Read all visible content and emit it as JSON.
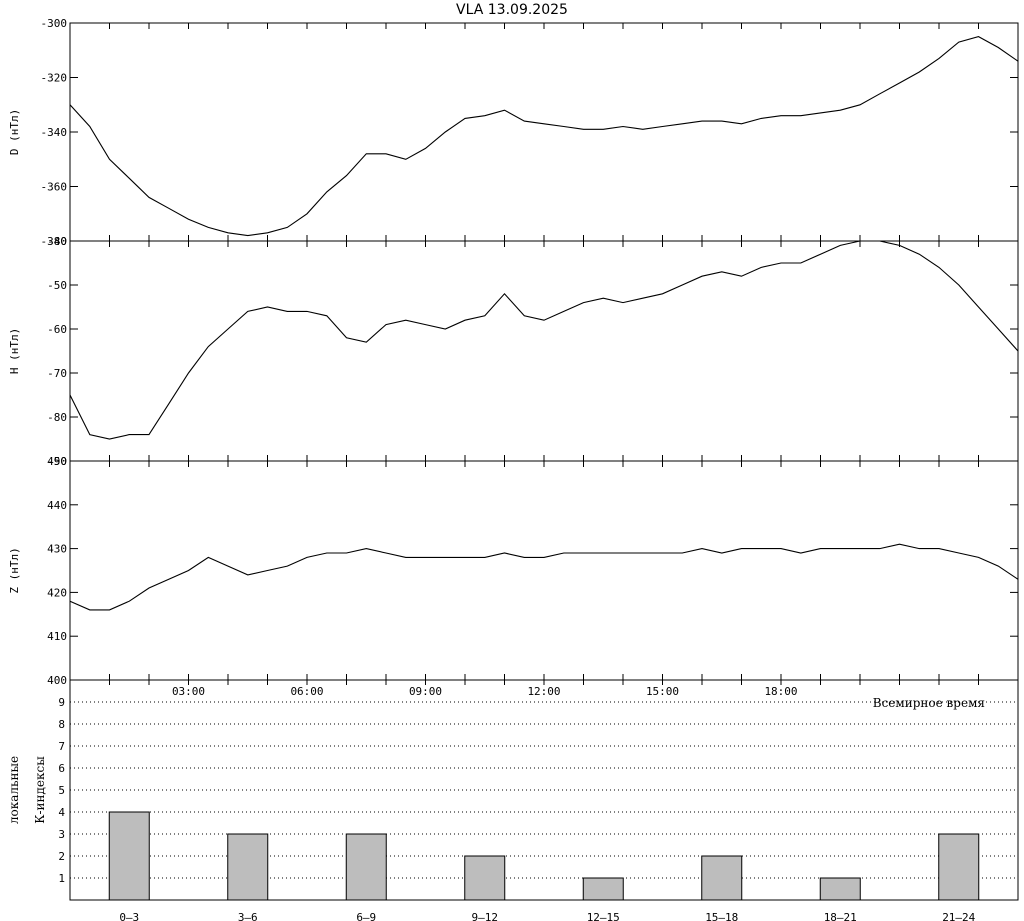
{
  "title": "VLA   13.09.2025",
  "chart_data": [
    {
      "type": "line",
      "ylabel": "D (нТл)",
      "ylim": [
        -380,
        -300
      ],
      "yticks": [
        -380,
        -360,
        -340,
        -320,
        -300
      ],
      "x_hours": [
        0,
        0.5,
        1,
        1.5,
        2,
        2.5,
        3,
        3.5,
        4,
        4.5,
        5,
        5.5,
        6,
        6.5,
        7,
        7.5,
        8,
        8.5,
        9,
        9.5,
        10,
        10.5,
        11,
        11.5,
        12,
        12.5,
        13,
        13.5,
        14,
        14.5,
        15,
        15.5,
        16,
        16.5,
        17,
        17.5,
        18,
        18.5,
        19,
        19.5,
        20,
        20.5,
        21,
        21.5,
        22,
        22.5,
        23,
        23.5,
        24
      ],
      "values": [
        -330,
        -338,
        -350,
        -357,
        -364,
        -368,
        -372,
        -375,
        -377,
        -378,
        -377,
        -375,
        -370,
        -362,
        -356,
        -348,
        -348,
        -350,
        -346,
        -340,
        -335,
        -334,
        -332,
        -336,
        -337,
        -338,
        -339,
        -339,
        -338,
        -339,
        -338,
        -337,
        -336,
        -336,
        -337,
        -335,
        -334,
        -334,
        -333,
        -332,
        -330,
        -326,
        -322,
        -318,
        -313,
        -307,
        -305,
        -309,
        -314
      ]
    },
    {
      "type": "line",
      "ylabel": "H (нТл)",
      "ylim": [
        -90,
        -40
      ],
      "yticks": [
        -90,
        -80,
        -70,
        -60,
        -50,
        -40
      ],
      "x_hours": [
        0,
        0.5,
        1,
        1.5,
        2,
        2.5,
        3,
        3.5,
        4,
        4.5,
        5,
        5.5,
        6,
        6.5,
        7,
        7.5,
        8,
        8.5,
        9,
        9.5,
        10,
        10.5,
        11,
        11.5,
        12,
        12.5,
        13,
        13.5,
        14,
        14.5,
        15,
        15.5,
        16,
        16.5,
        17,
        17.5,
        18,
        18.5,
        19,
        19.5,
        20,
        20.5,
        21,
        21.5,
        22,
        22.5,
        23,
        23.5,
        24
      ],
      "values": [
        -75,
        -84,
        -85,
        -84,
        -84,
        -77,
        -70,
        -64,
        -60,
        -56,
        -55,
        -56,
        -56,
        -57,
        -62,
        -63,
        -59,
        -58,
        -59,
        -60,
        -58,
        -57,
        -52,
        -57,
        -58,
        -56,
        -54,
        -53,
        -54,
        -53,
        -52,
        -50,
        -48,
        -47,
        -48,
        -46,
        -45,
        -45,
        -43,
        -41,
        -40,
        -40,
        -41,
        -43,
        -46,
        -50,
        -55,
        -60,
        -65
      ]
    },
    {
      "type": "line",
      "ylabel": "Z (нТл)",
      "ylim": [
        400,
        450
      ],
      "yticks": [
        400,
        410,
        420,
        430,
        440,
        450
      ],
      "x_hours": [
        0,
        0.5,
        1,
        1.5,
        2,
        2.5,
        3,
        3.5,
        4,
        4.5,
        5,
        5.5,
        6,
        6.5,
        7,
        7.5,
        8,
        8.5,
        9,
        9.5,
        10,
        10.5,
        11,
        11.5,
        12,
        12.5,
        13,
        13.5,
        14,
        14.5,
        15,
        15.5,
        16,
        16.5,
        17,
        17.5,
        18,
        18.5,
        19,
        19.5,
        20,
        20.5,
        21,
        21.5,
        22,
        22.5,
        23,
        23.5,
        24
      ],
      "values": [
        418,
        416,
        416,
        418,
        421,
        423,
        425,
        428,
        426,
        424,
        425,
        426,
        428,
        429,
        429,
        430,
        429,
        428,
        428,
        428,
        428,
        428,
        429,
        428,
        428,
        429,
        429,
        429,
        429,
        429,
        429,
        429,
        430,
        429,
        430,
        430,
        430,
        429,
        430,
        430,
        430,
        430,
        431,
        430,
        430,
        429,
        428,
        426,
        423
      ]
    },
    {
      "type": "bar",
      "ylabel": "локальные",
      "ylabel2": "К-индексы",
      "xlabel": "Всемирное время",
      "ylim": [
        0,
        10
      ],
      "yticks": [
        1,
        2,
        3,
        4,
        5,
        6,
        7,
        8,
        9
      ],
      "time_ticks": [
        "03:00",
        "06:00",
        "09:00",
        "12:00",
        "15:00",
        "18:00"
      ],
      "categories": [
        "0–3",
        "3–6",
        "6–9",
        "9–12",
        "12–15",
        "15–18",
        "18–21",
        "21–24"
      ],
      "values": [
        4,
        3,
        3,
        2,
        1,
        2,
        1,
        3
      ],
      "bar_color": "#bdbdbd"
    }
  ]
}
